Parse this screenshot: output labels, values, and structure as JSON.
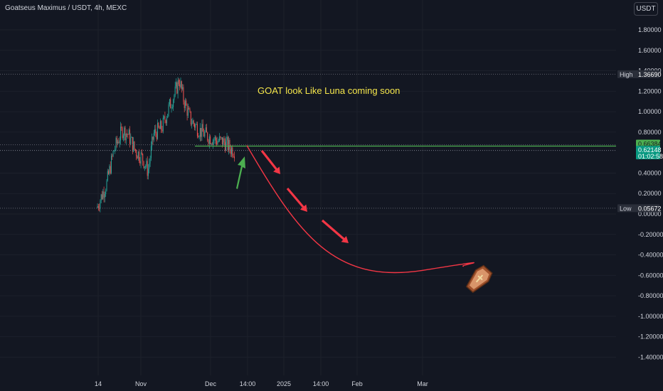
{
  "header": {
    "symbol_title": "Goatseus Maximus / USDT, 4h, MEXC",
    "currency": "USDT"
  },
  "annotation": "GOAT look Like Luna coming soon",
  "colors": {
    "background": "#131722",
    "up": "#26a69a",
    "down": "#ef5350",
    "horizontal_line": "#4caf50",
    "projection": "#f23645",
    "green_arrow": "#4caf50",
    "annotation": "#f5e64b"
  },
  "icons": [
    "coffin-icon",
    "green-arrow-icon",
    "red-arrow-icon"
  ],
  "chart_data": {
    "type": "candlestick",
    "y_ticks": [
      "1.80000",
      "1.60000",
      "1.40000",
      "1.20000",
      "1.00000",
      "0.80000",
      "0.40000",
      "0.20000",
      "0.00000",
      "-0.20000",
      "-0.40000",
      "-0.60000",
      "-0.80000",
      "-1.00000",
      "-1.20000",
      "-1.40000"
    ],
    "x_ticks": [
      "14",
      "Nov",
      "Dec",
      "14:00",
      "2025",
      "14:00",
      "Feb",
      "Mar"
    ],
    "ylim": [
      -1.48,
      1.92
    ],
    "price_start": 0.06,
    "price_high": 1.3669,
    "price_low": 0.05672,
    "last_price": 0.62148,
    "markers": {
      "high": {
        "label": "High",
        "value": "1.36690"
      },
      "low": {
        "label": "Low",
        "value": "0.05672"
      },
      "level": {
        "value": "0.66384",
        "price": 0.66384
      },
      "current": {
        "value": "0.62148",
        "countdown": "01:02:58"
      }
    },
    "projection": {
      "start_price": 0.67,
      "bottom_price": -0.55,
      "end_price": -0.51
    }
  }
}
